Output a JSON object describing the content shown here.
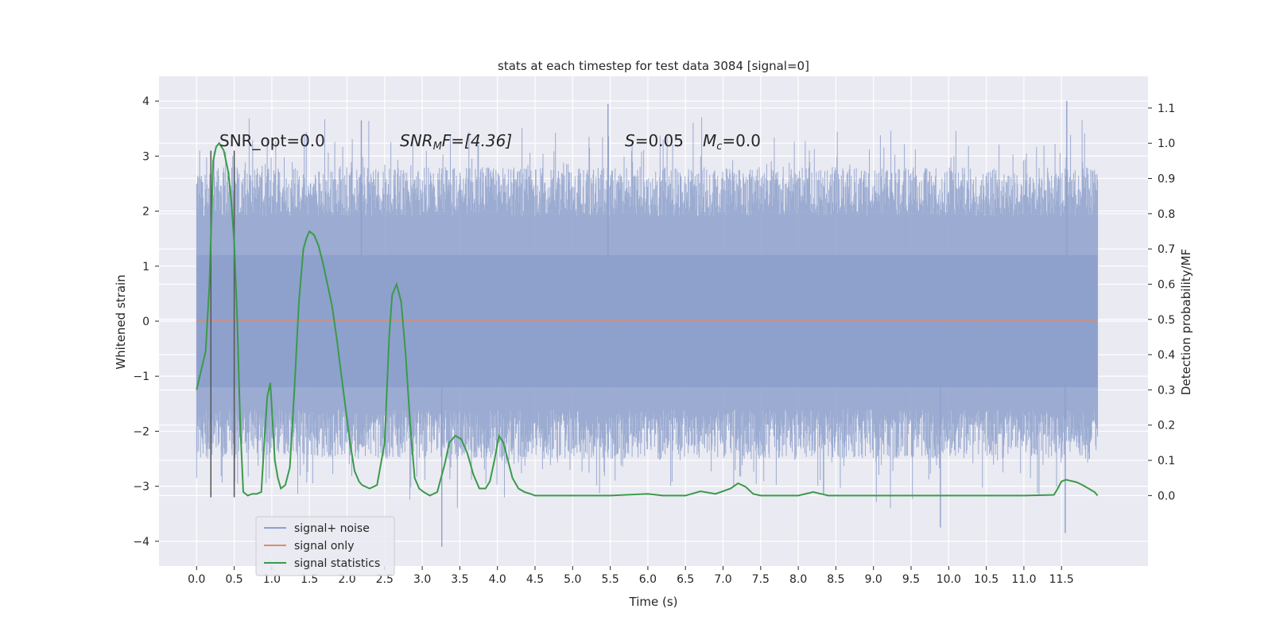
{
  "chart_data": {
    "type": "line",
    "title": "stats at each timestep for test data 3084 [signal=0]",
    "xlabel": "Time (s)",
    "ylabel": "Whitened strain",
    "ylabel_right": "Detection probability/MF",
    "xlim": [
      -0.5,
      12.65
    ],
    "ylim": [
      -4.45,
      4.45
    ],
    "ylim_right": [
      -0.2,
      1.19
    ],
    "x_ticks": [
      0.0,
      0.5,
      1.0,
      1.5,
      2.0,
      2.5,
      3.0,
      3.5,
      4.0,
      4.5,
      5.0,
      5.5,
      6.0,
      6.5,
      7.0,
      7.5,
      8.0,
      8.5,
      9.0,
      9.5,
      10.0,
      10.5,
      11.0,
      11.5
    ],
    "x_tick_labels": [
      "0.0",
      "0.5",
      "1.0",
      "1.5",
      "2.0",
      "2.5",
      "3.0",
      "3.5",
      "4.0",
      "4.5",
      "5.0",
      "5.5",
      "6.0",
      "6.5",
      "7.0",
      "7.5",
      "8.0",
      "8.5",
      "9.0",
      "9.5",
      "10.0",
      "10.5",
      "11.0",
      "11.5"
    ],
    "y_ticks": [
      -4,
      -3,
      -2,
      -1,
      0,
      1,
      2,
      3,
      4
    ],
    "y_tick_labels": [
      "−4",
      "−3",
      "−2",
      "−1",
      "0",
      "1",
      "2",
      "3",
      "4"
    ],
    "y_ticks_right": [
      0.0,
      0.1,
      0.2,
      0.3,
      0.4,
      0.5,
      0.6,
      0.7,
      0.8,
      0.9,
      1.0,
      1.1
    ],
    "y_tick_labels_right": [
      "0.0",
      "0.1",
      "0.2",
      "0.3",
      "0.4",
      "0.5",
      "0.6",
      "0.7",
      "0.8",
      "0.9",
      "1.0",
      "1.1"
    ],
    "grid": true,
    "legend_position": "lower-left",
    "colors": {
      "noise": "#8da0cb",
      "signal": "#e08a6a",
      "stats": "#3a9a4a",
      "vline": "#555555",
      "plot_bg": "#eaeaf2",
      "grid": "#ffffff"
    },
    "series": [
      {
        "name": "signal+ noise",
        "kind": "noise-band",
        "t_start": 0.0,
        "t_end": 11.98,
        "y_typical_range": [
          -2.0,
          2.3
        ],
        "y_min": -4.1,
        "y_max": 4.0,
        "spike_peaks": [
          {
            "x": 5.47,
            "y": 3.95
          },
          {
            "x": 11.57,
            "y": 4.0
          },
          {
            "x": 3.26,
            "y": -4.1
          },
          {
            "x": 11.55,
            "y": -3.85
          },
          {
            "x": 2.19,
            "y": 3.65
          },
          {
            "x": 9.89,
            "y": -3.75
          }
        ]
      },
      {
        "name": "signal only",
        "kind": "line",
        "x": [
          0.0,
          11.98
        ],
        "y": [
          0.0,
          0.0
        ]
      },
      {
        "name": "signal statistics",
        "kind": "line",
        "axis": "right",
        "x": [
          0.0,
          0.12,
          0.17,
          0.2,
          0.22,
          0.26,
          0.3,
          0.36,
          0.42,
          0.46,
          0.5,
          0.54,
          0.58,
          0.62,
          0.68,
          0.74,
          0.8,
          0.86,
          0.9,
          0.94,
          0.98,
          1.0,
          1.04,
          1.08,
          1.12,
          1.18,
          1.24,
          1.3,
          1.36,
          1.42,
          1.46,
          1.5,
          1.56,
          1.62,
          1.68,
          1.74,
          1.8,
          1.86,
          1.92,
          1.98,
          2.04,
          2.1,
          2.16,
          2.2,
          2.3,
          2.4,
          2.5,
          2.56,
          2.6,
          2.66,
          2.72,
          2.78,
          2.84,
          2.9,
          2.96,
          3.02,
          3.1,
          3.2,
          3.3,
          3.36,
          3.44,
          3.52,
          3.6,
          3.68,
          3.76,
          3.84,
          3.9,
          3.96,
          4.02,
          4.08,
          4.14,
          4.2,
          4.28,
          4.36,
          4.44,
          4.5,
          4.6,
          5.0,
          5.5,
          6.0,
          6.2,
          6.5,
          6.7,
          6.9,
          7.1,
          7.2,
          7.3,
          7.4,
          7.5,
          8.0,
          8.2,
          8.3,
          8.4,
          9.0,
          10.0,
          11.0,
          11.4,
          11.45,
          11.5,
          11.56,
          11.62,
          11.7,
          11.78,
          11.86,
          11.94,
          11.98
        ],
        "y": [
          0.3,
          0.41,
          0.6,
          0.8,
          0.95,
          0.99,
          1.0,
          0.98,
          0.92,
          0.84,
          0.72,
          0.5,
          0.2,
          0.01,
          0.0,
          0.005,
          0.005,
          0.01,
          0.15,
          0.28,
          0.32,
          0.25,
          0.1,
          0.05,
          0.02,
          0.03,
          0.08,
          0.3,
          0.55,
          0.7,
          0.73,
          0.75,
          0.74,
          0.71,
          0.66,
          0.6,
          0.54,
          0.45,
          0.35,
          0.25,
          0.15,
          0.07,
          0.04,
          0.03,
          0.02,
          0.03,
          0.15,
          0.45,
          0.57,
          0.6,
          0.55,
          0.4,
          0.2,
          0.05,
          0.02,
          0.01,
          0.0,
          0.01,
          0.09,
          0.15,
          0.17,
          0.16,
          0.12,
          0.06,
          0.02,
          0.02,
          0.04,
          0.1,
          0.17,
          0.15,
          0.1,
          0.05,
          0.02,
          0.01,
          0.005,
          0.0,
          0.0,
          0.0,
          0.0,
          0.005,
          0.0,
          0.0,
          0.012,
          0.005,
          0.02,
          0.035,
          0.025,
          0.005,
          0.0,
          0.0,
          0.01,
          0.005,
          0.0,
          0.0,
          0.0,
          0.0,
          0.002,
          0.02,
          0.04,
          0.045,
          0.042,
          0.038,
          0.03,
          0.02,
          0.01,
          0.0
        ]
      }
    ],
    "vertical_lines": [
      {
        "x": 0.19,
        "y_range": [
          -3.2,
          3.1
        ]
      },
      {
        "x": 0.5,
        "y_range": [
          -3.2,
          3.1
        ]
      }
    ],
    "annotations": [
      {
        "text": "SNR_opt=0.0",
        "x": 0.2,
        "y": 3.2
      },
      {
        "text": "SNR_MF=[4.36]",
        "x": 2.6,
        "y": 3.2,
        "parts": {
          "base": "SNR",
          "sub": "M",
          "tail": "F=[4.36]"
        }
      },
      {
        "text": "S=0.05   M_c=0.0",
        "x": 5.6,
        "y": 3.2,
        "parts": {
          "s": "S",
          "s_tail": "=0.05",
          "m": "M",
          "m_sub": "c",
          "m_tail": "=0.0"
        }
      }
    ],
    "legend": [
      {
        "label": "signal+ noise",
        "color": "#8da0cb"
      },
      {
        "label": "signal only",
        "color": "#e08a6a"
      },
      {
        "label": "signal statistics",
        "color": "#3a9a4a"
      }
    ]
  }
}
